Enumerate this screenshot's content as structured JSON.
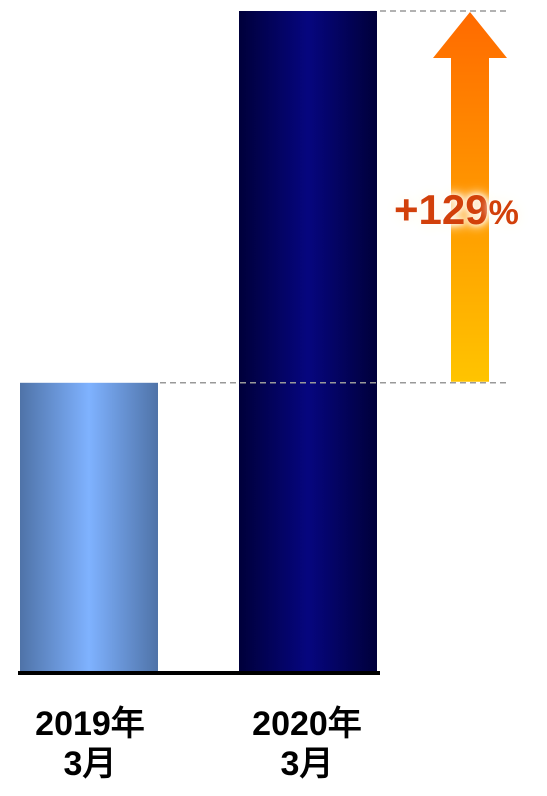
{
  "chart_data": {
    "type": "bar",
    "categories": [
      "2019年\n3月",
      "2020年\n3月"
    ],
    "values": [
      100,
      229
    ],
    "ylim": [
      0,
      229
    ],
    "grid": false,
    "legend": "none",
    "annotation": {
      "text": "+129",
      "suffix": "%",
      "from_category": 0,
      "to_category": 1
    },
    "colors": {
      "bar_2019": "#7fb2ff",
      "bar_2019_edge": "#4f73a8",
      "bar_2020": "#06067f",
      "bar_2020_edge": "#00003a",
      "arrow_top": "#ff6a00",
      "arrow_bottom": "#ffc400",
      "annotation_text": "#d2400a",
      "guide_line": "#999999",
      "axis": "#000000"
    }
  }
}
